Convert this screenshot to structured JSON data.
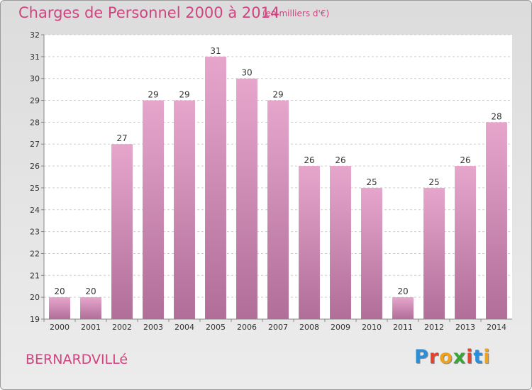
{
  "header": {
    "title": "Charges de Personnel 2000 à 2014",
    "unit": "(en milliers d'€)"
  },
  "footer": {
    "town": "BERNARDVILLé",
    "logo_text": "Proxiti"
  },
  "chart_data": {
    "type": "bar",
    "title": "Charges de Personnel 2000 à 2014",
    "subtitle": "(en milliers d'€)",
    "categories": [
      "2000",
      "2001",
      "2002",
      "2003",
      "2004",
      "2005",
      "2006",
      "2007",
      "2008",
      "2009",
      "2010",
      "2011",
      "2012",
      "2013",
      "2014"
    ],
    "values": [
      20,
      20,
      27,
      29,
      29,
      31,
      30,
      29,
      26,
      26,
      25,
      20,
      25,
      26,
      28
    ],
    "ylim": [
      19,
      32
    ],
    "yticks": [
      19,
      20,
      21,
      22,
      23,
      24,
      25,
      26,
      27,
      28,
      29,
      30,
      31,
      32
    ],
    "grid": "horizontal-dashed",
    "colors": {
      "bar_top": "#e6a6cc",
      "bar_bottom": "#b06e98",
      "title": "#d0447f",
      "plot_bg": "#ffffff"
    }
  }
}
